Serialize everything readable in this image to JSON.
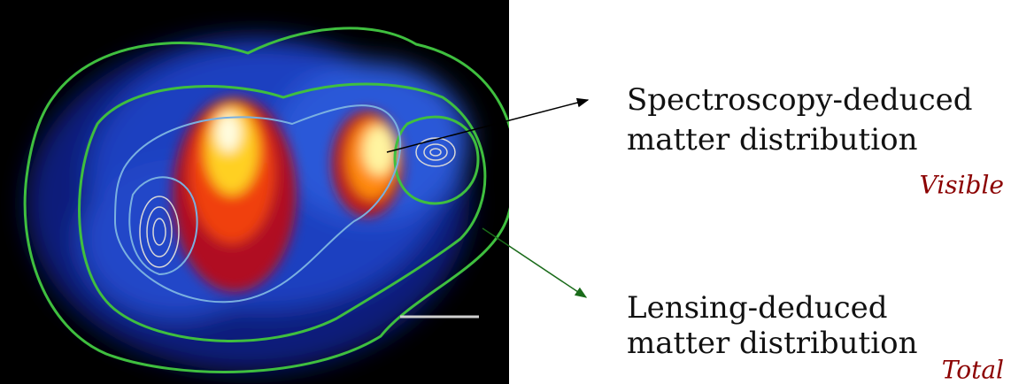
{
  "annotations": [
    {
      "lines": [
        "Spectroscopy-deduced",
        "matter distribution"
      ],
      "tag": "Visible"
    },
    {
      "lines": [
        "Lensing-deduced",
        "matter distribution"
      ],
      "tag": "Total"
    }
  ]
}
